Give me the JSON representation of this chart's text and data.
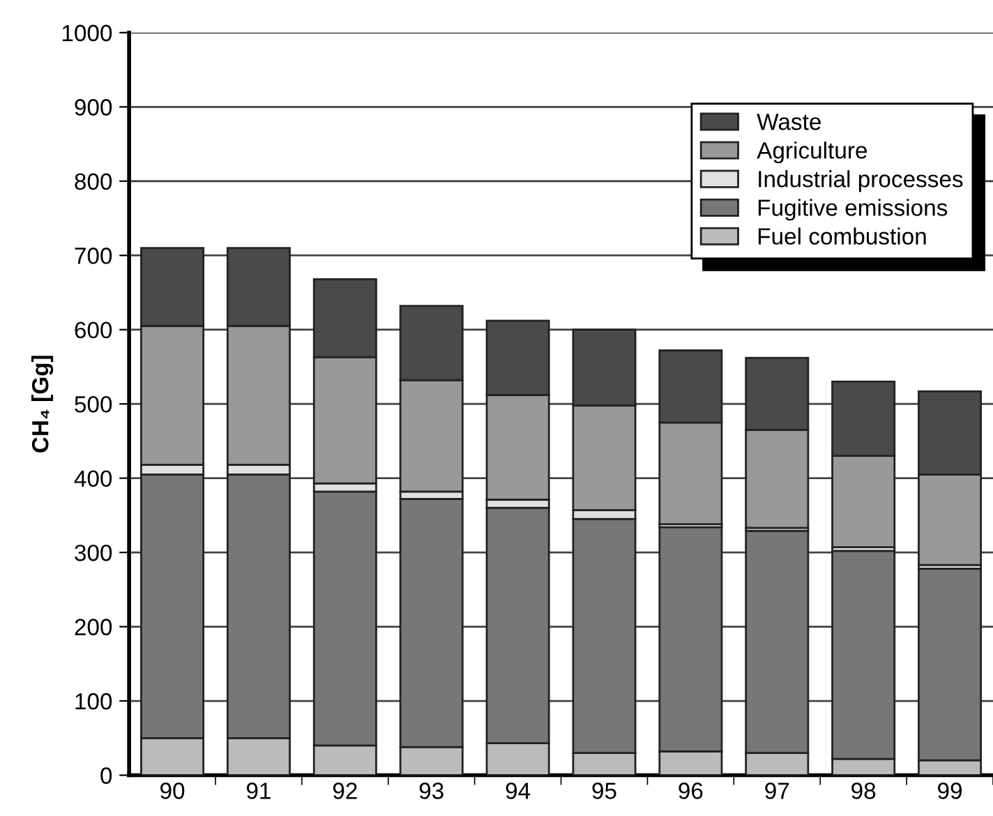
{
  "chart_data": {
    "type": "bar",
    "stacked": true,
    "ylabel": "CH₄ [Gg]",
    "categories": [
      "90",
      "91",
      "92",
      "93",
      "94",
      "95",
      "96",
      "97",
      "98",
      "99"
    ],
    "series": [
      {
        "name": "Fuel combustion",
        "color": "#bbbbbb",
        "values": [
          50,
          50,
          40,
          38,
          43,
          30,
          32,
          30,
          22,
          20
        ]
      },
      {
        "name": "Fugitive emissions",
        "color": "#777777",
        "values": [
          355,
          355,
          342,
          334,
          317,
          315,
          302,
          299,
          280,
          258
        ]
      },
      {
        "name": "Industrial processes",
        "color": "#e0e0e0",
        "values": [
          13,
          13,
          11,
          10,
          11,
          12,
          4,
          4,
          5,
          5
        ]
      },
      {
        "name": "Agriculture",
        "color": "#999999",
        "values": [
          187,
          187,
          170,
          150,
          141,
          141,
          137,
          132,
          123,
          122
        ]
      },
      {
        "name": "Waste",
        "color": "#4a4a4a",
        "values": [
          105,
          105,
          105,
          100,
          100,
          102,
          97,
          97,
          100,
          112
        ]
      }
    ],
    "ylim": [
      0,
      1000
    ],
    "yticks": [
      0,
      100,
      200,
      300,
      400,
      500,
      600,
      700,
      800,
      900,
      1000
    ],
    "grid": "y",
    "legend": "top right"
  }
}
